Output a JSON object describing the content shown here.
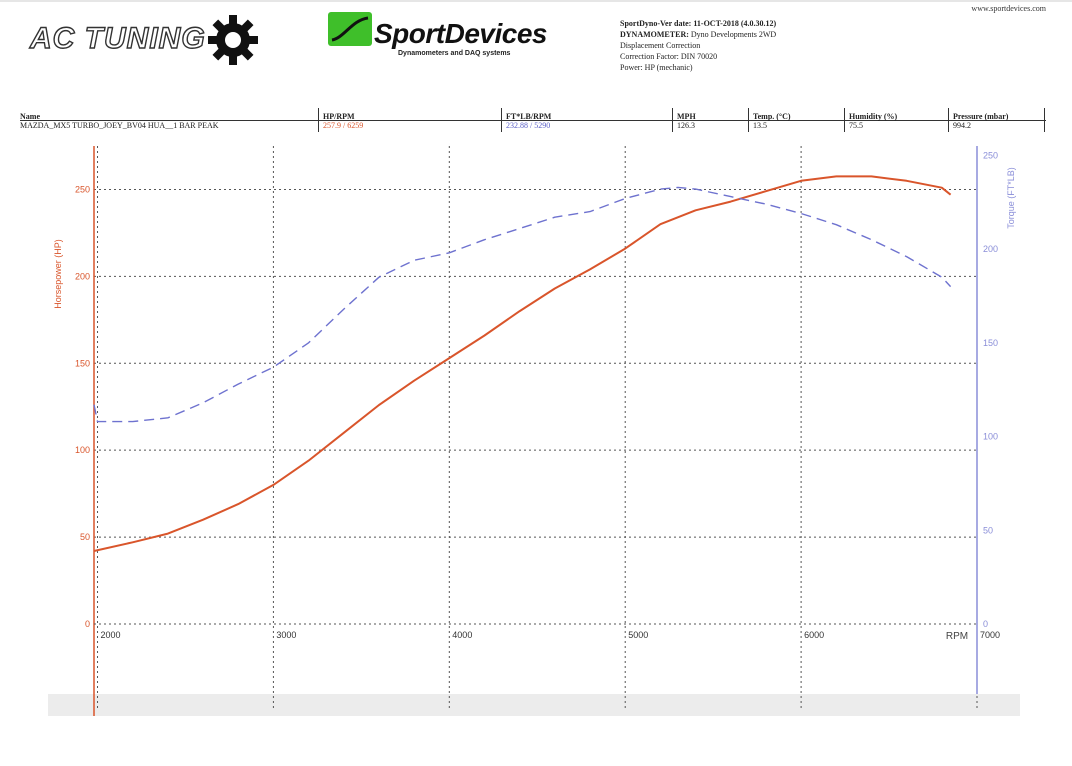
{
  "site_url": "www.sportdevices.com",
  "logos": {
    "ac_tuning": "AC TUNING",
    "sportdevices_name": "SportDevices",
    "sportdevices_tagline": "Dynamometers and DAQ systems",
    "sportdevices_color": "#3fbf2a"
  },
  "info": {
    "version_label": "SportDyno-Ver date:",
    "version_value": "11-OCT-2018 (4.0.30.12)",
    "dyno_label": "DYNAMOMETER:",
    "dyno_value": "Dyno Developments 2WD",
    "line3": "Displacement Correction",
    "line4": "Correction Factor: DIN 70020",
    "line5": "Power: HP (mechanic)"
  },
  "header": {
    "name_label": "Name",
    "name_value": "MAZDA_MX5 TURBO_JOEY_BV04 HUA__1 BAR PEAK",
    "hp_label": "HP/RPM",
    "hp_value": "257.9 / 6259",
    "tq_label": "FT*LB/RPM",
    "tq_value": "232.88 / 5290",
    "mph_label": "MPH",
    "mph_value": "126.3",
    "temp_label": "Temp. (°C)",
    "temp_value": "13.5",
    "hum_label": "Humidity (%)",
    "hum_value": "75.5",
    "press_label": "Pressure (mbar)",
    "press_value": "994.2"
  },
  "chart_data": {
    "type": "line",
    "xlabel": "RPM",
    "ylabel_left": "Horsepower (HP)",
    "ylabel_right": "Torque (FT*LB)",
    "xlim": [
      1980,
      7000
    ],
    "x_ticks": [
      2000,
      3000,
      4000,
      5000,
      6000,
      7000
    ],
    "ylim_left": [
      0,
      275
    ],
    "y_ticks_left": [
      0,
      50,
      100,
      150,
      200,
      250
    ],
    "ylim_right": [
      0,
      255
    ],
    "y_ticks_right": [
      0,
      50,
      100,
      150,
      200,
      250
    ],
    "grid": true,
    "colors": {
      "hp": "#d9552b",
      "torque": "#6e72cf",
      "left_axis": "#d9552b",
      "right_axis": "#8a8ed8"
    },
    "series": [
      {
        "axis": "left",
        "style": "solid",
        "x": [
          1980,
          2200,
          2400,
          2600,
          2800,
          3000,
          3200,
          3400,
          3600,
          3800,
          4000,
          4200,
          4400,
          4600,
          4800,
          5000,
          5200,
          5400,
          5600,
          5800,
          6000,
          6200,
          6400,
          6600,
          6800,
          6850
        ],
        "values": [
          42,
          47,
          52,
          60,
          69,
          80,
          94,
          110,
          126,
          140,
          153,
          166,
          180,
          193,
          204,
          216,
          230,
          238,
          243,
          249,
          255,
          257.5,
          257.5,
          255,
          251,
          247
        ]
      },
      {
        "axis": "right",
        "style": "dashed",
        "x": [
          1980,
          2000,
          2200,
          2400,
          2600,
          2800,
          3000,
          3200,
          3400,
          3600,
          3800,
          4000,
          4200,
          4400,
          4600,
          4800,
          5000,
          5200,
          5300,
          5400,
          5600,
          5800,
          6000,
          6200,
          6400,
          6600,
          6800,
          6850
        ],
        "values": [
          117,
          108,
          108,
          110,
          118,
          128,
          137,
          150,
          168,
          185,
          194,
          198,
          205,
          211,
          217,
          220,
          227,
          232,
          232.9,
          232,
          228,
          224,
          219,
          213,
          205,
          196,
          185,
          180
        ]
      }
    ]
  }
}
